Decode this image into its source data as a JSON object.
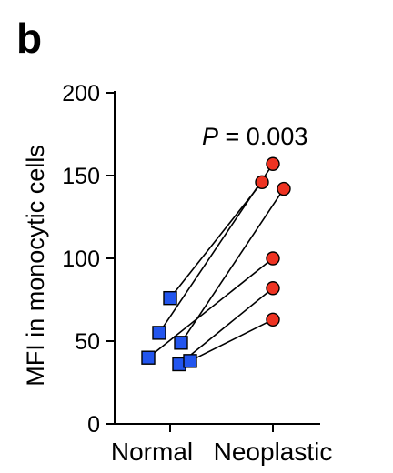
{
  "panel_label": "b",
  "chart_data": {
    "type": "scatter",
    "title": "",
    "ylabel": "MFI in monocytic cells",
    "xlabel": "",
    "categories": [
      "Normal",
      "Neoplastic"
    ],
    "ylim": [
      0,
      200
    ],
    "yticks": [
      "0",
      "50",
      "100",
      "150",
      "200"
    ],
    "annotation": {
      "p_symbol": "P",
      "p_text": " = 0.003"
    },
    "colors": {
      "normal": "#2255ee",
      "neoplastic": "#ee3322"
    },
    "pairs": [
      {
        "normal": 76,
        "neoplastic": 146
      },
      {
        "normal": 55,
        "neoplastic": 157
      },
      {
        "normal": 40,
        "neoplastic": 100
      },
      {
        "normal": 36,
        "neoplastic": 82
      },
      {
        "normal": 49,
        "neoplastic": 142
      },
      {
        "normal": 38,
        "neoplastic": 63
      }
    ]
  }
}
